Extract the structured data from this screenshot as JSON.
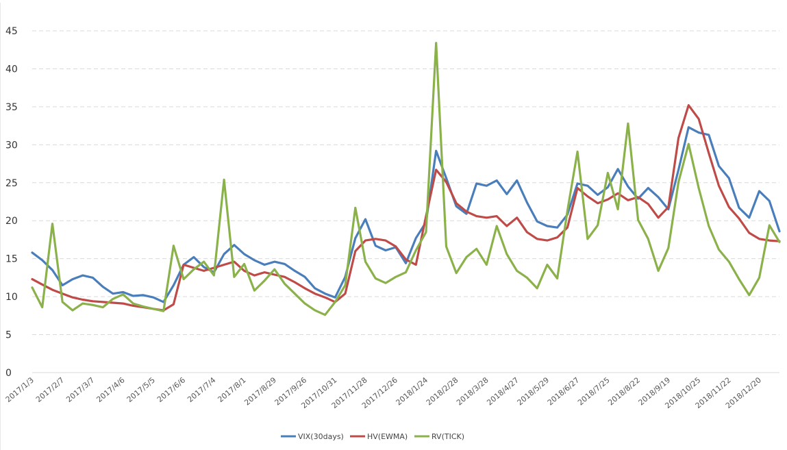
{
  "chart_data": {
    "type": "line",
    "title": "",
    "xlabel": "",
    "ylabel": "",
    "ylim": [
      0,
      45
    ],
    "yticks": [
      0,
      5,
      10,
      15,
      20,
      25,
      30,
      35,
      40,
      45
    ],
    "grid": "horizontal dashed",
    "legend_position": "bottom",
    "x_tick_labels": [
      "2017/1/3",
      "2017/2/7",
      "2017/3/7",
      "2017/4/6",
      "2017/5/5",
      "2017/6/6",
      "2017/7/4",
      "2017/8/1",
      "2017/8/29",
      "2017/9/26",
      "2017/10/31",
      "2017/11/28",
      "2017/12/26",
      "2018/1/24",
      "2018/2/28",
      "2018/3/28",
      "2018/4/27",
      "2018/5/29",
      "2018/6/27",
      "2018/7/25",
      "2018/8/22",
      "2018/9/19",
      "2018/10/25",
      "2018/11/22",
      "2018/12/20"
    ],
    "series": [
      {
        "name": "VIX(30days)",
        "color": "#4a7ebb",
        "values": [
          15.8,
          14.8,
          13.5,
          11.5,
          12.3,
          12.8,
          12.5,
          11.3,
          10.4,
          10.6,
          10.1,
          10.2,
          9.9,
          9.3,
          11.5,
          14.2,
          15.2,
          13.9,
          13.2,
          15.6,
          16.8,
          15.6,
          14.8,
          14.2,
          14.6,
          14.3,
          13.4,
          12.6,
          11.1,
          10.4,
          9.9,
          12.6,
          17.7,
          20.2,
          16.7,
          16.1,
          16.5,
          14.4,
          17.7,
          19.8,
          29.2,
          25.6,
          21.9,
          20.9,
          24.9,
          24.6,
          25.3,
          23.5,
          25.3,
          22.4,
          19.9,
          19.3,
          19.1,
          20.8,
          24.9,
          24.6,
          23.4,
          24.4,
          26.8,
          24.5,
          22.9,
          24.3,
          23.1,
          21.5,
          26.7,
          32.3,
          31.6,
          31.3,
          27.2,
          25.6,
          21.7,
          20.4,
          23.9,
          22.6,
          18.6
        ]
      },
      {
        "name": "HV(EWMA)",
        "color": "#be4b48",
        "values": [
          12.3,
          11.6,
          10.9,
          10.4,
          9.9,
          9.6,
          9.4,
          9.3,
          9.2,
          9.1,
          8.8,
          8.6,
          8.4,
          8.2,
          9.0,
          14.2,
          13.8,
          13.4,
          13.8,
          14.2,
          14.6,
          13.4,
          12.8,
          13.2,
          12.9,
          12.6,
          11.9,
          11.1,
          10.4,
          9.9,
          9.3,
          10.4,
          16.0,
          17.4,
          17.6,
          17.4,
          16.6,
          14.9,
          14.2,
          20.6,
          26.7,
          25.1,
          22.3,
          21.2,
          20.6,
          20.4,
          20.6,
          19.3,
          20.4,
          18.5,
          17.6,
          17.4,
          17.8,
          19.1,
          24.3,
          23.2,
          22.3,
          22.8,
          23.6,
          22.7,
          23.1,
          22.2,
          20.4,
          21.8,
          30.9,
          35.2,
          33.4,
          28.9,
          24.6,
          21.8,
          20.3,
          18.4,
          17.6,
          17.4,
          17.3
        ]
      },
      {
        "name": "RV(TICK)",
        "color": "#8bb14a",
        "values": [
          11.2,
          8.6,
          19.6,
          9.3,
          8.2,
          9.1,
          8.9,
          8.6,
          9.7,
          10.3,
          9.1,
          8.7,
          8.4,
          8.1,
          16.7,
          12.3,
          13.6,
          14.6,
          12.8,
          25.4,
          12.6,
          14.3,
          10.8,
          12.1,
          13.6,
          11.7,
          10.4,
          9.1,
          8.2,
          7.6,
          9.3,
          11.5,
          21.7,
          14.6,
          12.4,
          11.8,
          12.6,
          13.2,
          16.1,
          18.5,
          43.4,
          16.6,
          13.1,
          15.2,
          16.3,
          14.2,
          19.3,
          15.6,
          13.4,
          12.5,
          11.1,
          14.2,
          12.4,
          21.3,
          29.1,
          17.6,
          19.4,
          26.3,
          21.5,
          32.8,
          20.1,
          17.6,
          13.4,
          16.4,
          25.1,
          30.1,
          24.3,
          19.3,
          16.2,
          14.6,
          12.3,
          10.2,
          12.5,
          19.4,
          17.2
        ]
      }
    ]
  }
}
